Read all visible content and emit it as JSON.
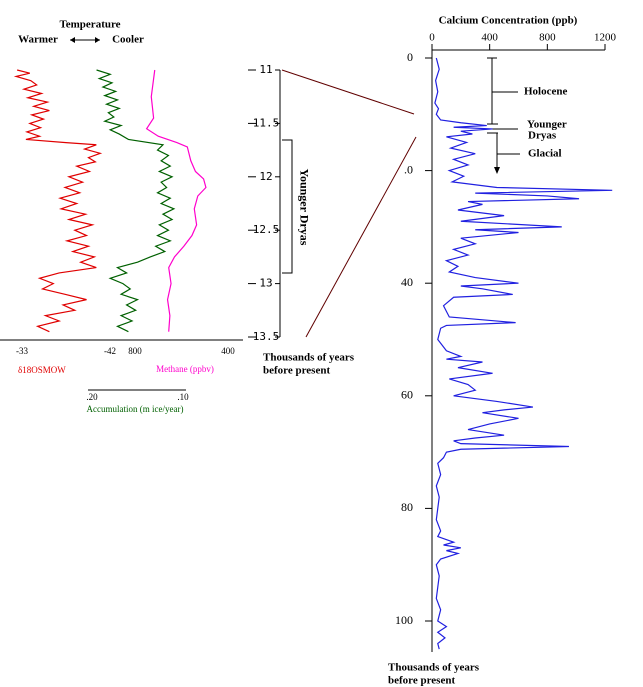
{
  "chart_data": [
    {
      "type": "line",
      "orientation": "vertical",
      "title": "Temperature",
      "warmer_label": "Warmer",
      "cooler_label": "Cooler",
      "x_label": [
        "Thousands of years",
        "before present"
      ],
      "xlim": [
        11,
        13.5
      ],
      "xticks": [
        11,
        11.5,
        12,
        12.5,
        13,
        13.5
      ],
      "annotation": "Younger Dryas",
      "series": [
        {
          "name": "δ18OSMOW",
          "color": "#e00000",
          "ylim": [
            -33,
            -42
          ],
          "yticks": [
            -33,
            -42
          ],
          "x": [
            11.0,
            11.03,
            11.06,
            11.1,
            11.14,
            11.18,
            11.22,
            11.26,
            11.3,
            11.34,
            11.38,
            11.42,
            11.46,
            11.5,
            11.54,
            11.58,
            11.62,
            11.65,
            11.68,
            11.7,
            11.74,
            11.78,
            11.82,
            11.86,
            11.9,
            11.95,
            12.0,
            12.05,
            12.1,
            12.15,
            12.2,
            12.25,
            12.3,
            12.35,
            12.4,
            12.45,
            12.5,
            12.55,
            12.6,
            12.65,
            12.7,
            12.75,
            12.8,
            12.85,
            12.9,
            12.95,
            13.0,
            13.05,
            13.1,
            13.15,
            13.2,
            13.25,
            13.3,
            13.35,
            13.4,
            13.45
          ],
          "values": [
            -32.5,
            -33.8,
            -32.4,
            -33.9,
            -34.5,
            -33.2,
            -35.0,
            -33.6,
            -35.6,
            -34.2,
            -35.8,
            -34.0,
            -35.2,
            -33.8,
            -34.9,
            -33.5,
            -34.8,
            -33.4,
            -37.5,
            -40.6,
            -39.4,
            -41.0,
            -39.8,
            -40.5,
            -38.6,
            -39.9,
            -37.8,
            -39.2,
            -37.4,
            -38.9,
            -36.9,
            -38.6,
            -37.0,
            -39.5,
            -37.8,
            -40.2,
            -38.4,
            -39.6,
            -37.6,
            -39.8,
            -38.2,
            -40.4,
            -39.0,
            -40.6,
            -36.8,
            -34.8,
            -36.2,
            -35.1,
            -37.4,
            -39.6,
            -37.2,
            -38.4,
            -35.4,
            -36.8,
            -34.6,
            -35.8
          ]
        },
        {
          "name": "Accumulation (m ice/year)",
          "color": "#006000",
          "ylim": [
            0.2,
            0.1
          ],
          "yticks": [
            {
              "value": 0.2,
              "label": ".20"
            },
            {
              "value": 0.1,
              "label": ".10"
            }
          ],
          "x": [
            11.0,
            11.04,
            11.08,
            11.12,
            11.16,
            11.2,
            11.24,
            11.28,
            11.32,
            11.36,
            11.4,
            11.44,
            11.48,
            11.52,
            11.56,
            11.6,
            11.65,
            11.7,
            11.75,
            11.8,
            11.85,
            11.9,
            11.95,
            12.0,
            12.05,
            12.1,
            12.15,
            12.2,
            12.25,
            12.3,
            12.35,
            12.4,
            12.45,
            12.5,
            12.55,
            12.6,
            12.65,
            12.7,
            12.75,
            12.8,
            12.85,
            12.9,
            12.95,
            13.0,
            13.05,
            13.1,
            13.15,
            13.2,
            13.25,
            13.3,
            13.35,
            13.4,
            13.45
          ],
          "values": [
            0.195,
            0.18,
            0.192,
            0.178,
            0.188,
            0.174,
            0.186,
            0.172,
            0.184,
            0.17,
            0.182,
            0.176,
            0.186,
            0.168,
            0.18,
            0.17,
            0.16,
            0.122,
            0.128,
            0.116,
            0.124,
            0.114,
            0.126,
            0.112,
            0.124,
            0.118,
            0.128,
            0.114,
            0.124,
            0.11,
            0.122,
            0.112,
            0.126,
            0.116,
            0.128,
            0.114,
            0.13,
            0.12,
            0.136,
            0.15,
            0.172,
            0.162,
            0.18,
            0.166,
            0.158,
            0.168,
            0.15,
            0.162,
            0.152,
            0.168,
            0.156,
            0.172,
            0.16
          ]
        },
        {
          "name": "Methane (ppbv)",
          "color": "#ff00cc",
          "ylim": [
            800,
            400
          ],
          "yticks": [
            800,
            400
          ],
          "x": [
            11.0,
            11.25,
            11.45,
            11.55,
            11.62,
            11.68,
            11.72,
            11.85,
            11.95,
            12.02,
            12.1,
            12.18,
            12.3,
            12.45,
            12.55,
            12.65,
            12.75,
            12.85,
            13.0,
            13.15,
            13.3,
            13.45
          ],
          "values": [
            715,
            730,
            720,
            750,
            700,
            620,
            575,
            560,
            540,
            505,
            495,
            530,
            545,
            535,
            555,
            590,
            630,
            655,
            645,
            660,
            650,
            655
          ]
        }
      ]
    },
    {
      "type": "line",
      "orientation": "vertical",
      "title": "Calcium Concentration (ppb)",
      "x_label": [
        "Thousands of years",
        "before present"
      ],
      "xlim": [
        0,
        105
      ],
      "xticks": [
        0,
        {
          "value": 20,
          "label": ".0"
        },
        40,
        60,
        80,
        100
      ],
      "ylim": [
        0,
        1200
      ],
      "yticks": [
        0,
        400,
        800,
        1200
      ],
      "annotations": [
        "Holocene",
        "Younger",
        "Dryas",
        "Glacial"
      ],
      "series": [
        {
          "color": "#2020e0",
          "x": [
            0,
            2,
            4,
            6,
            8,
            9,
            10,
            11,
            11.5,
            12,
            12.3,
            12.6,
            13,
            13.5,
            14,
            15,
            16,
            17,
            18,
            19,
            20,
            21,
            22,
            23,
            23.5,
            24,
            24.5,
            25,
            25.5,
            26,
            27,
            28,
            29,
            30,
            30.5,
            31,
            32,
            33,
            34,
            35,
            36,
            37,
            38,
            39,
            40,
            40.5,
            41,
            42,
            42.5,
            44,
            46,
            47,
            47.5,
            48,
            50,
            52,
            53,
            53.5,
            54,
            55,
            56,
            57,
            58,
            59,
            60,
            61,
            62,
            62.5,
            63,
            64,
            65,
            66,
            67,
            67.5,
            68,
            68.5,
            69,
            69.5,
            70,
            71,
            72,
            74,
            76,
            78,
            80,
            82,
            84,
            85,
            86,
            86.5,
            87,
            87.5,
            88,
            89,
            90,
            92,
            94,
            96,
            98,
            100,
            101,
            102,
            103,
            104,
            105
          ],
          "values": [
            30,
            50,
            25,
            40,
            20,
            45,
            30,
            60,
            200,
            380,
            150,
            420,
            200,
            280,
            100,
            240,
            130,
            300,
            150,
            250,
            120,
            220,
            140,
            450,
            1250,
            300,
            800,
            1020,
            250,
            350,
            180,
            500,
            200,
            900,
            300,
            600,
            200,
            300,
            150,
            250,
            100,
            180,
            120,
            300,
            600,
            200,
            350,
            560,
            150,
            80,
            120,
            580,
            100,
            60,
            40,
            100,
            200,
            100,
            350,
            180,
            420,
            120,
            250,
            300,
            150,
            450,
            700,
            500,
            350,
            600,
            400,
            250,
            500,
            300,
            150,
            200,
            950,
            200,
            100,
            80,
            40,
            60,
            30,
            50,
            40,
            30,
            60,
            40,
            150,
            80,
            200,
            100,
            180,
            60,
            30,
            50,
            40,
            30,
            60,
            40,
            100,
            40,
            90,
            40,
            50
          ]
        }
      ]
    }
  ]
}
